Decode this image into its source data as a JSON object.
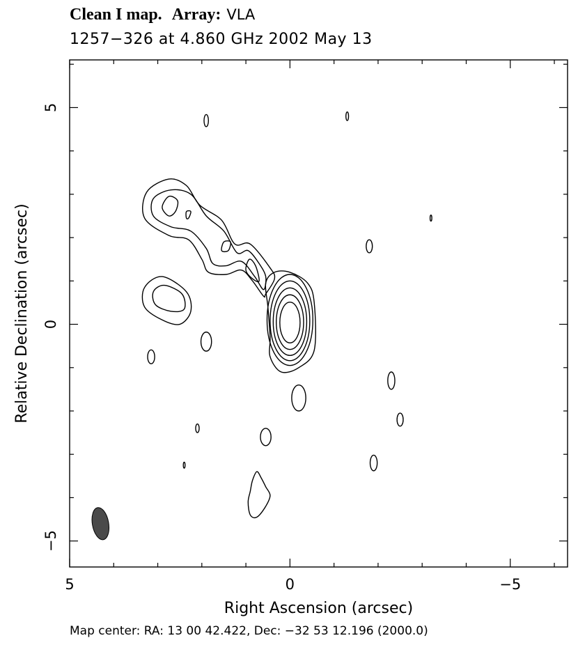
{
  "header": {
    "map_label": "Clean I map.",
    "array_label": "Array:",
    "array_value": "VLA",
    "subtitle": "1257−326 at 4.860 GHz 2002 May 13"
  },
  "footer": {
    "map_center": "Map center:  RA: 13 00 42.422,  Dec: −32 53 12.196 (2000.0)"
  },
  "chart_data": {
    "type": "contour",
    "title": "Clean I map.  Array: VLA",
    "subtitle": "1257−326 at 4.860 GHz 2002 May 13",
    "xlabel": "Right Ascension  (arcsec)",
    "ylabel": "Relative Declination  (arcsec)",
    "xlim": [
      5.0,
      -6.3
    ],
    "ylim": [
      -5.6,
      6.1
    ],
    "x_ticks": [
      {
        "value": 5,
        "label": "5"
      },
      {
        "value": 0,
        "label": "0"
      },
      {
        "value": -5,
        "label": "−5"
      }
    ],
    "y_ticks": [
      {
        "value": 5,
        "label": "5"
      },
      {
        "value": 0,
        "label": "0"
      },
      {
        "value": -5,
        "label": "−5"
      }
    ],
    "beam": {
      "x": 4.3,
      "y": -4.6,
      "major": 0.75,
      "minor": 0.37,
      "pa_deg": 10,
      "color": "#4a4a4a"
    },
    "core": {
      "contours": [
        {
          "x": 0.0,
          "y": 0.1,
          "rx": 0.52,
          "ry": 1.05
        },
        {
          "x": 0.0,
          "y": 0.08,
          "rx": 0.45,
          "ry": 0.92
        },
        {
          "x": 0.0,
          "y": 0.06,
          "rx": 0.38,
          "ry": 0.78
        },
        {
          "x": 0.0,
          "y": 0.05,
          "rx": 0.31,
          "ry": 0.63
        },
        {
          "x": 0.0,
          "y": 0.04,
          "rx": 0.23,
          "ry": 0.47
        }
      ]
    },
    "jet_contours": [
      [
        [
          0.55,
          0.7
        ],
        [
          0.35,
          1.05
        ],
        [
          0.45,
          1.3
        ],
        [
          0.9,
          1.85
        ],
        [
          1.25,
          1.85
        ],
        [
          1.55,
          2.4
        ],
        [
          2.05,
          2.75
        ],
        [
          2.35,
          3.2
        ],
        [
          2.75,
          3.35
        ],
        [
          3.25,
          3.05
        ],
        [
          3.3,
          2.45
        ],
        [
          2.75,
          2.05
        ],
        [
          2.3,
          1.95
        ],
        [
          2.0,
          1.5
        ],
        [
          1.85,
          1.2
        ],
        [
          1.45,
          1.15
        ],
        [
          1.1,
          1.25
        ],
        [
          0.85,
          1.0
        ],
        [
          0.6,
          0.65
        ]
      ],
      [
        [
          0.6,
          0.8
        ],
        [
          0.55,
          1.1
        ],
        [
          0.7,
          1.4
        ],
        [
          0.95,
          1.7
        ],
        [
          1.2,
          1.65
        ],
        [
          1.5,
          2.15
        ],
        [
          1.9,
          2.5
        ],
        [
          2.25,
          3.0
        ],
        [
          2.7,
          3.1
        ],
        [
          3.1,
          2.9
        ],
        [
          3.1,
          2.5
        ],
        [
          2.7,
          2.25
        ],
        [
          2.25,
          2.15
        ],
        [
          1.9,
          1.75
        ],
        [
          1.75,
          1.4
        ],
        [
          1.45,
          1.35
        ],
        [
          1.1,
          1.45
        ],
        [
          0.8,
          1.1
        ]
      ],
      [
        [
          0.7,
          1.0
        ],
        [
          0.78,
          1.35
        ],
        [
          0.92,
          1.5
        ],
        [
          1.0,
          1.25
        ],
        [
          0.85,
          1.05
        ]
      ],
      [
        [
          2.6,
          2.6
        ],
        [
          2.55,
          2.85
        ],
        [
          2.75,
          2.95
        ],
        [
          2.9,
          2.7
        ],
        [
          2.75,
          2.5
        ]
      ],
      [
        [
          2.3,
          2.45
        ],
        [
          2.25,
          2.6
        ],
        [
          2.35,
          2.6
        ],
        [
          2.35,
          2.45
        ]
      ],
      [
        [
          1.4,
          1.7
        ],
        [
          1.35,
          1.9
        ],
        [
          1.5,
          1.9
        ],
        [
          1.55,
          1.7
        ]
      ],
      [
        [
          2.25,
          0.3
        ],
        [
          2.35,
          0.75
        ],
        [
          2.9,
          1.1
        ],
        [
          3.3,
          0.85
        ],
        [
          3.3,
          0.4
        ],
        [
          2.9,
          0.1
        ],
        [
          2.5,
          0.0
        ]
      ],
      [
        [
          2.4,
          0.35
        ],
        [
          2.45,
          0.7
        ],
        [
          2.85,
          0.9
        ],
        [
          3.1,
          0.75
        ],
        [
          3.05,
          0.45
        ],
        [
          2.7,
          0.3
        ]
      ]
    ],
    "noise_blobs": [
      {
        "x": 1.9,
        "y": 4.7,
        "rx": 0.05,
        "ry": 0.14
      },
      {
        "x": -1.3,
        "y": 4.8,
        "rx": 0.03,
        "ry": 0.1
      },
      {
        "x": -3.2,
        "y": 2.45,
        "rx": 0.02,
        "ry": 0.07
      },
      {
        "x": -1.8,
        "y": 1.8,
        "rx": 0.07,
        "ry": 0.15
      },
      {
        "x": 1.9,
        "y": -0.4,
        "rx": 0.12,
        "ry": 0.22
      },
      {
        "x": 3.15,
        "y": -0.75,
        "rx": 0.08,
        "ry": 0.16
      },
      {
        "x": -2.3,
        "y": -1.3,
        "rx": 0.08,
        "ry": 0.2
      },
      {
        "x": -2.5,
        "y": -2.2,
        "rx": 0.07,
        "ry": 0.15
      },
      {
        "x": -1.9,
        "y": -3.2,
        "rx": 0.08,
        "ry": 0.18
      },
      {
        "x": -0.2,
        "y": -1.7,
        "rx": 0.16,
        "ry": 0.3
      },
      {
        "x": 0.55,
        "y": -2.6,
        "rx": 0.12,
        "ry": 0.2
      },
      {
        "x": 2.1,
        "y": -2.4,
        "rx": 0.04,
        "ry": 0.1
      },
      {
        "x": 2.4,
        "y": -3.25,
        "rx": 0.02,
        "ry": 0.07
      }
    ],
    "southern_blob": [
      [
        0.45,
        -3.95
      ],
      [
        0.55,
        -3.75
      ],
      [
        0.65,
        -3.55
      ],
      [
        0.75,
        -3.4
      ],
      [
        0.85,
        -3.6
      ],
      [
        0.9,
        -3.85
      ],
      [
        0.95,
        -4.1
      ],
      [
        0.9,
        -4.4
      ],
      [
        0.75,
        -4.45
      ],
      [
        0.55,
        -4.2
      ]
    ]
  }
}
